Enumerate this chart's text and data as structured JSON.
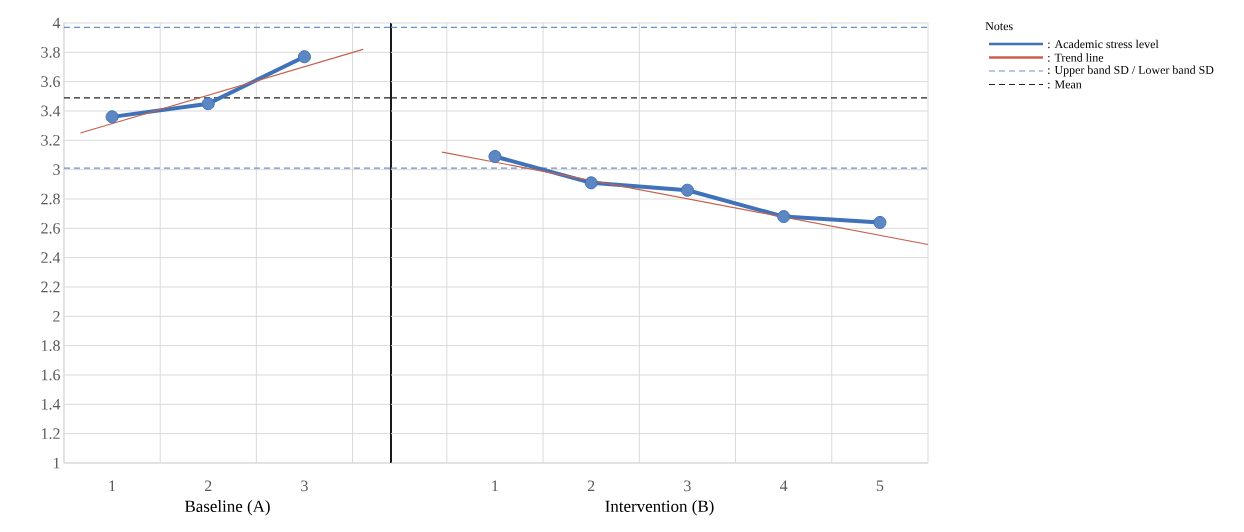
{
  "chart_data": [
    {
      "type": "line",
      "xlabel": "Baseline (A)",
      "grid": true,
      "xlim": [
        0.5,
        3.9
      ],
      "xticks": [
        {
          "value": 0.5,
          "label": null
        },
        1,
        {
          "value": 1.5,
          "label": null
        },
        2,
        {
          "value": 2.5,
          "label": null
        },
        3,
        {
          "value": 3.5,
          "label": null
        }
      ],
      "ylim": [
        1,
        4
      ],
      "yticks": [
        1,
        1.2,
        1.4,
        1.6,
        1.8,
        2,
        2.2,
        2.4,
        2.6,
        2.8,
        3,
        3.2,
        3.4,
        3.6,
        3.8,
        4
      ],
      "series": [
        {
          "color": "#3f72b9",
          "marker": "circle",
          "line_style": "solid",
          "x": [
            1,
            2,
            3
          ],
          "values": [
            3.36,
            3.45,
            3.77
          ]
        },
        {
          "color": "#c8604d",
          "marker": "none",
          "line_style": "solid",
          "x": [
            0.67,
            3.61
          ],
          "values": [
            3.25,
            3.82
          ]
        }
      ],
      "ref_lines": [
        {
          "axis": "y",
          "value": 3.97,
          "color": "#6f8fc8",
          "line_style": "dashed"
        },
        {
          "axis": "y",
          "value": 3.01,
          "color": "#6f8fc8",
          "line_style": "dashed"
        },
        {
          "axis": "y",
          "value": 3.49,
          "color": "#222222",
          "line_style": "dashed"
        }
      ]
    },
    {
      "type": "line",
      "xlabel": "Intervention (B)",
      "legend_title": "Notes",
      "legend": "top right",
      "grid": true,
      "tick_labels": "x",
      "xlim": [
        -0.08,
        5.5
      ],
      "xticks": [
        {
          "value": 0.5,
          "label": null
        },
        1,
        {
          "value": 1.5,
          "label": null
        },
        2,
        {
          "value": 2.5,
          "label": null
        },
        3,
        {
          "value": 3.5,
          "label": null
        },
        4,
        {
          "value": 4.5,
          "label": null
        },
        5,
        {
          "value": 5.5,
          "label": null
        }
      ],
      "ylim": [
        1,
        4
      ],
      "yticks": [
        1,
        1.2,
        1.4,
        1.6,
        1.8,
        2,
        2.2,
        2.4,
        2.6,
        2.8,
        3,
        3.2,
        3.4,
        3.6,
        3.8,
        4
      ],
      "series": [
        {
          "name": ": Academic stress level",
          "color": "#3f72b9",
          "marker": "circle",
          "line_style": "solid",
          "x": [
            1,
            2,
            3,
            4,
            5
          ],
          "values": [
            3.09,
            2.91,
            2.86,
            2.68,
            2.64
          ]
        },
        {
          "name": ": Trend line",
          "color": "#c8604d",
          "marker": "none",
          "line_style": "solid",
          "x": [
            0.45,
            5.5
          ],
          "values": [
            3.12,
            2.49
          ]
        }
      ],
      "ref_lines": [
        {
          "axis": "y",
          "value": 3.97,
          "label": ": Upper band SD / Lower band SD",
          "color": "#6f8fc8",
          "line_style": "dashed"
        },
        {
          "axis": "y",
          "value": 3.01,
          "color": "#6f8fc8",
          "line_style": "dashed"
        },
        {
          "axis": "y",
          "value": 3.49,
          "label": ": Mean",
          "color": "#222222",
          "line_style": "dashed"
        }
      ]
    }
  ]
}
